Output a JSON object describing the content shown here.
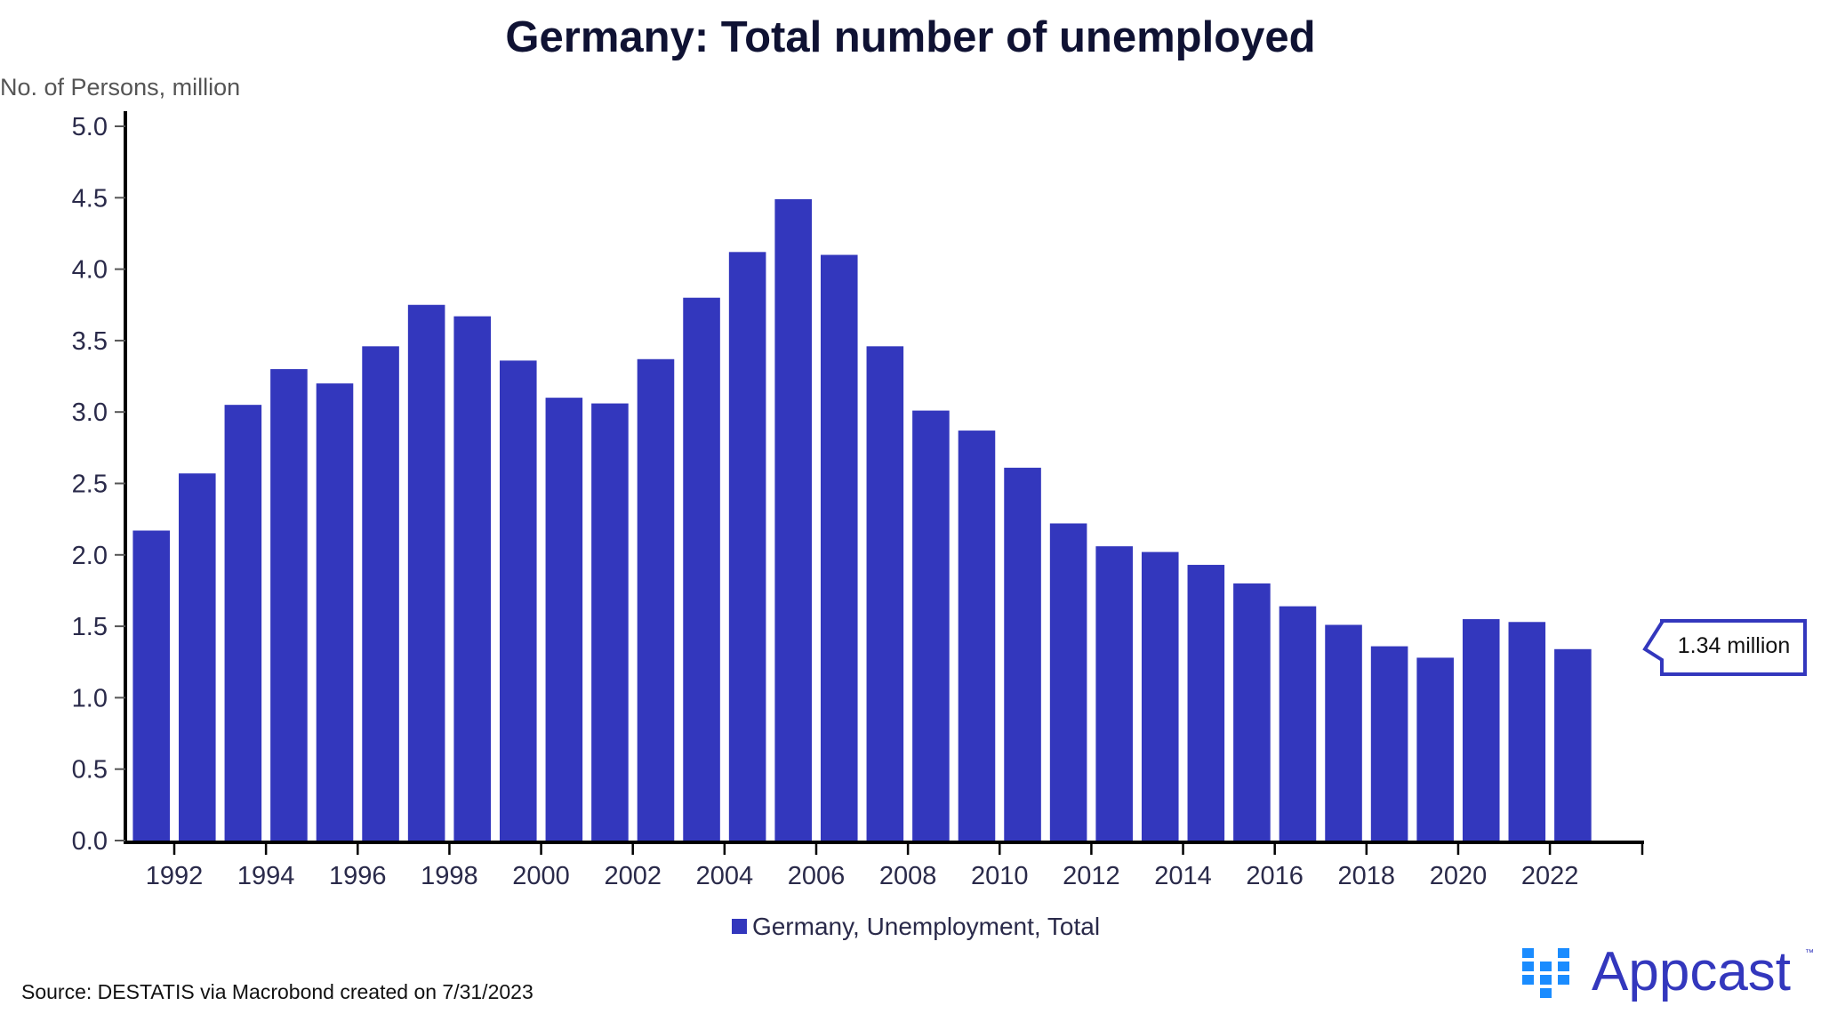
{
  "chart_data": {
    "type": "bar",
    "title": "Germany: Total number of unemployed",
    "ylabel": "No. of Persons, million",
    "xlabel": "",
    "categories": [
      1991,
      1992,
      1993,
      1994,
      1995,
      1996,
      1997,
      1998,
      1999,
      2000,
      2001,
      2002,
      2003,
      2004,
      2005,
      2006,
      2007,
      2008,
      2009,
      2010,
      2011,
      2012,
      2013,
      2014,
      2015,
      2016,
      2017,
      2018,
      2019,
      2020,
      2021,
      2022
    ],
    "series": [
      {
        "name": "Germany, Unemployment, Total",
        "values": [
          2.17,
          2.57,
          3.05,
          3.3,
          3.2,
          3.46,
          3.75,
          3.67,
          3.36,
          3.1,
          3.06,
          3.37,
          3.8,
          4.12,
          4.49,
          4.1,
          3.46,
          3.01,
          2.87,
          2.61,
          2.22,
          2.06,
          2.02,
          1.93,
          1.8,
          1.64,
          1.51,
          1.36,
          1.28,
          1.55,
          1.53,
          1.34
        ]
      }
    ],
    "ylim": [
      0,
      5.0
    ],
    "yticks": [
      "0.0",
      "0.5",
      "1.0",
      "1.5",
      "2.0",
      "2.5",
      "3.0",
      "3.5",
      "4.0",
      "4.5",
      "5.0"
    ],
    "xticks": [
      "1992",
      "1994",
      "1996",
      "1998",
      "2000",
      "2002",
      "2004",
      "2006",
      "2008",
      "2010",
      "2012",
      "2014",
      "2016",
      "2018",
      "2020",
      "2022"
    ],
    "grid": false,
    "legend_position": "bottom",
    "annotation": "1.34 million",
    "bar_color": "#3337bd"
  },
  "source": "Source: DESTATIS via Macrobond created on 7/31/2023",
  "logo": {
    "text": "Appcast",
    "tm": "™",
    "square_color": "#1a8cff",
    "text_color": "#3337bd"
  }
}
